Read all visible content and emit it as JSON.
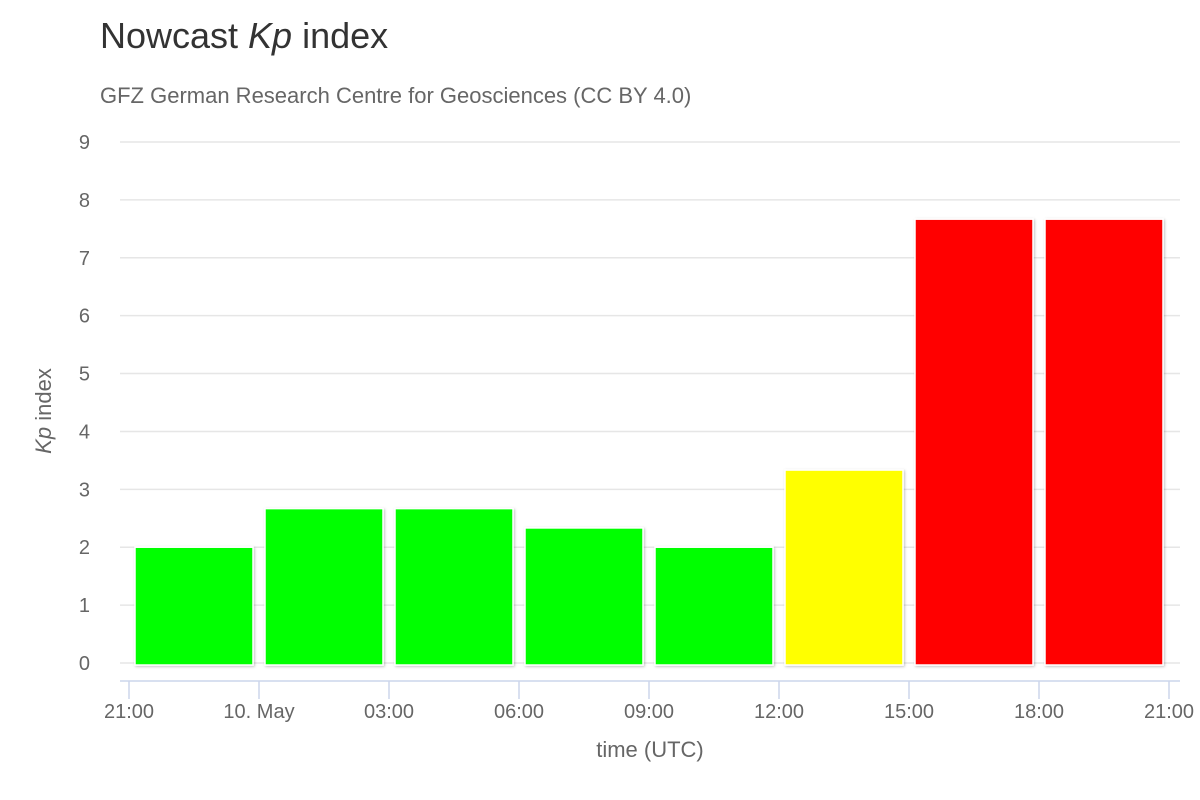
{
  "chart_data": {
    "type": "bar",
    "title_prefix": "Nowcast ",
    "title_italic": "Kp",
    "title_suffix": " index",
    "subtitle": "GFZ German Research Centre for Geosciences (CC BY 4.0)",
    "ylabel_italic": "Kp",
    "ylabel_suffix": " index",
    "xlabel": "time (UTC)",
    "ylim": [
      0,
      9
    ],
    "y_ticks": [
      "0",
      "1",
      "2",
      "3",
      "4",
      "5",
      "6",
      "7",
      "8",
      "9"
    ],
    "x_tick_labels": [
      "21:00",
      "10. May",
      "03:00",
      "06:00",
      "09:00",
      "12:00",
      "15:00",
      "18:00",
      "21:00"
    ],
    "x_tick_hours": [
      0,
      3,
      6,
      9,
      12,
      15,
      18,
      21,
      24
    ],
    "grid": true,
    "bars": [
      {
        "start_hour": 0,
        "value": 2.0,
        "color": "#00ff00"
      },
      {
        "start_hour": 3,
        "value": 2.667,
        "color": "#00ff00"
      },
      {
        "start_hour": 6,
        "value": 2.667,
        "color": "#00ff00"
      },
      {
        "start_hour": 9,
        "value": 2.333,
        "color": "#00ff00"
      },
      {
        "start_hour": 12,
        "value": 2.0,
        "color": "#00ff00"
      },
      {
        "start_hour": 15,
        "value": 3.333,
        "color": "#ffff00"
      },
      {
        "start_hour": 18,
        "value": 7.667,
        "color": "#ff0000"
      },
      {
        "start_hour": 21,
        "value": 7.667,
        "color": "#ff0000"
      }
    ]
  }
}
